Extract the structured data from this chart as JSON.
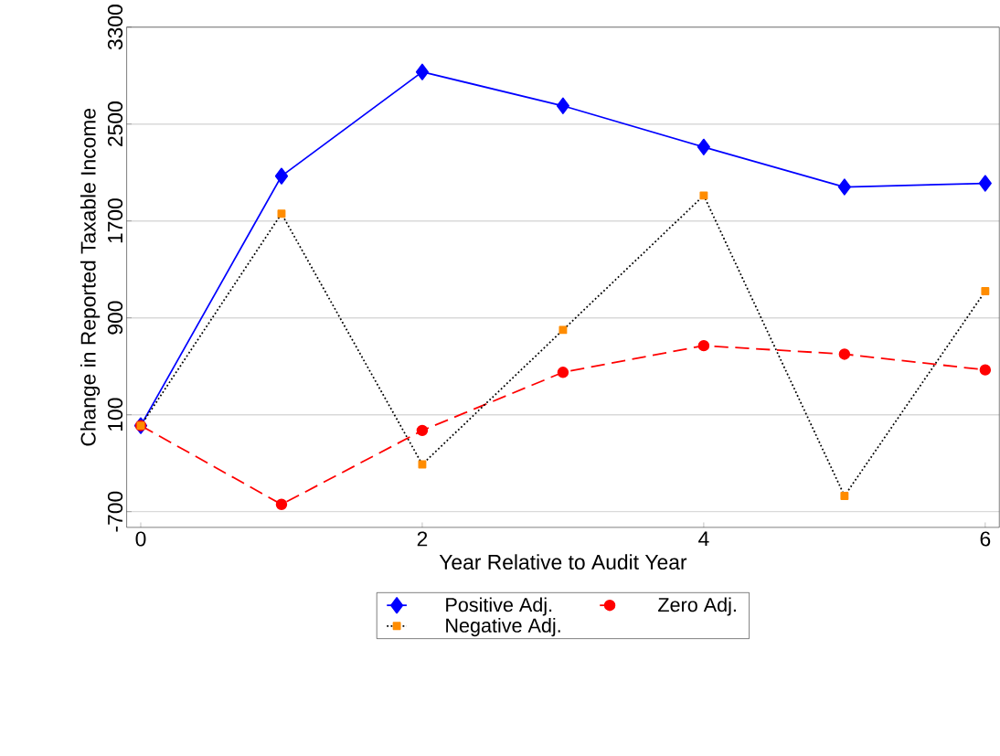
{
  "chart_data": {
    "type": "line",
    "xlabel": "Year Relative to Audit Year",
    "ylabel": "Change in Reported Taxable Income",
    "x": [
      0,
      1,
      2,
      3,
      4,
      5,
      6
    ],
    "series": [
      {
        "name": "Positive Adj.",
        "color": "#0000ff",
        "marker": "diamond",
        "line_style": "solid",
        "values": [
          10,
          2070,
          2930,
          2650,
          2310,
          1980,
          2010
        ]
      },
      {
        "name": "Zero Adj.",
        "color": "#ff0000",
        "marker": "circle",
        "line_style": "dashed",
        "values": [
          10,
          -640,
          -30,
          450,
          670,
          600,
          470
        ]
      },
      {
        "name": "Negative Adj.",
        "color": "#ff8c00",
        "marker": "square",
        "line_style": "dotted",
        "values": [
          10,
          1760,
          -310,
          800,
          1910,
          -570,
          1120
        ]
      }
    ],
    "xlim": [
      -0.1,
      6.1
    ],
    "ylim": [
      -830,
      3300
    ],
    "xticks": [
      0,
      2,
      4,
      6
    ],
    "yticks": [
      -700,
      100,
      900,
      1700,
      2500,
      3300
    ],
    "grid": "y",
    "legend": "bottom"
  }
}
